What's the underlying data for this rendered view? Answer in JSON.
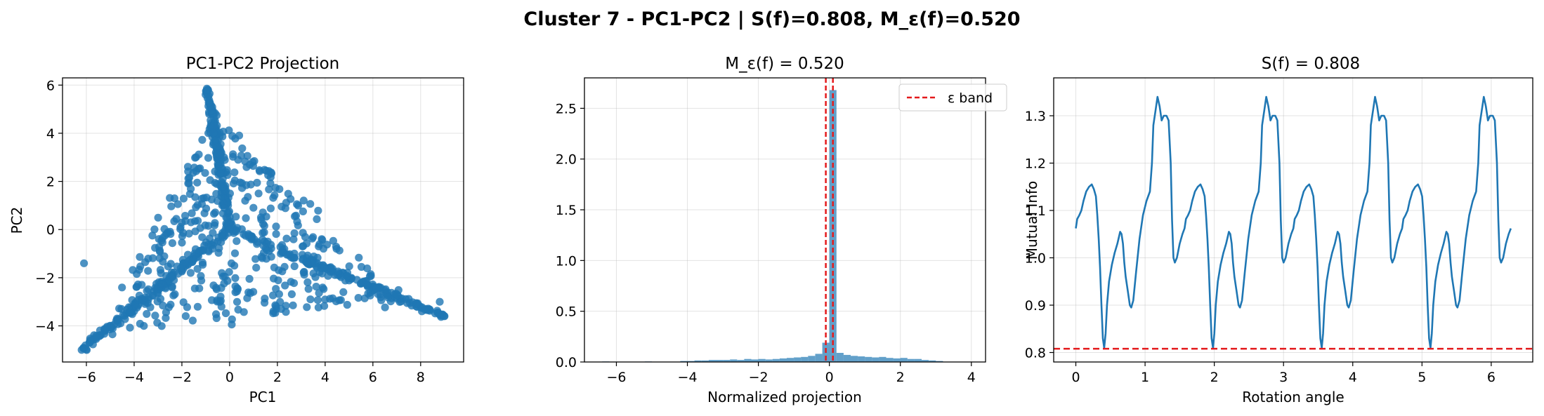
{
  "figure": {
    "title": "Cluster 7 - PC1-PC2 | S(f)=0.808, M_ε(f)=0.520"
  },
  "colors": {
    "series": "#1f77b4",
    "band": "#e41a1c"
  },
  "chart_data": [
    {
      "type": "scatter",
      "title": "PC1-PC2 Projection",
      "xlabel": "PC1",
      "ylabel": "PC2",
      "xlim": [
        -7,
        9.8
      ],
      "ylim": [
        -5.5,
        6.3
      ],
      "xticks": [
        -6,
        -4,
        -2,
        0,
        2,
        4,
        6,
        8
      ],
      "yticks": [
        -4,
        -2,
        0,
        2,
        4,
        6
      ],
      "grid": true,
      "shape": "three-arm star centered near (0, 0) with arms toward (-6.2, -5), (9, -3.6) and (-0.9, 5.8); about 1000 points",
      "extremes": [
        [
          -6.2,
          -5.0
        ],
        [
          9.0,
          -3.6
        ],
        [
          -0.9,
          5.8
        ],
        [
          -6.1,
          -1.4
        ],
        [
          8.8,
          -3.0
        ]
      ]
    },
    {
      "type": "bar",
      "title": "M_ε(f) = 0.520",
      "xlabel": "Normalized projection",
      "ylabel": "",
      "xlim": [
        -6.9,
        4.4
      ],
      "ylim": [
        0,
        2.8
      ],
      "xticks": [
        -6,
        -4,
        -2,
        0,
        2,
        4
      ],
      "yticks": [
        0.0,
        0.5,
        1.0,
        1.5,
        2.0,
        2.5
      ],
      "grid": true,
      "bin_width": 0.2,
      "bins": [
        {
          "x": -6.3,
          "y": 0.005
        },
        {
          "x": -5.1,
          "y": 0.005
        },
        {
          "x": -4.1,
          "y": 0.01
        },
        {
          "x": -3.9,
          "y": 0.01
        },
        {
          "x": -3.7,
          "y": 0.015
        },
        {
          "x": -3.5,
          "y": 0.015
        },
        {
          "x": -3.3,
          "y": 0.02
        },
        {
          "x": -3.1,
          "y": 0.02
        },
        {
          "x": -2.9,
          "y": 0.02
        },
        {
          "x": -2.7,
          "y": 0.025
        },
        {
          "x": -2.5,
          "y": 0.02
        },
        {
          "x": -2.3,
          "y": 0.03
        },
        {
          "x": -2.1,
          "y": 0.025
        },
        {
          "x": -1.9,
          "y": 0.03
        },
        {
          "x": -1.7,
          "y": 0.025
        },
        {
          "x": -1.5,
          "y": 0.03
        },
        {
          "x": -1.3,
          "y": 0.035
        },
        {
          "x": -1.1,
          "y": 0.04
        },
        {
          "x": -0.9,
          "y": 0.045
        },
        {
          "x": -0.7,
          "y": 0.05
        },
        {
          "x": -0.5,
          "y": 0.06
        },
        {
          "x": -0.3,
          "y": 0.08
        },
        {
          "x": -0.1,
          "y": 0.19
        },
        {
          "x": 0.1,
          "y": 2.68
        },
        {
          "x": 0.3,
          "y": 0.09
        },
        {
          "x": 0.5,
          "y": 0.07
        },
        {
          "x": 0.7,
          "y": 0.06
        },
        {
          "x": 0.9,
          "y": 0.055
        },
        {
          "x": 1.1,
          "y": 0.05
        },
        {
          "x": 1.3,
          "y": 0.045
        },
        {
          "x": 1.5,
          "y": 0.05
        },
        {
          "x": 1.7,
          "y": 0.04
        },
        {
          "x": 1.9,
          "y": 0.035
        },
        {
          "x": 2.1,
          "y": 0.04
        },
        {
          "x": 2.3,
          "y": 0.03
        },
        {
          "x": 2.5,
          "y": 0.03
        },
        {
          "x": 2.7,
          "y": 0.02
        },
        {
          "x": 2.9,
          "y": 0.015
        },
        {
          "x": 3.1,
          "y": 0.01
        }
      ],
      "band": [
        -0.1,
        0.1
      ],
      "legend": {
        "label": "ε band",
        "placement": "top-right"
      }
    },
    {
      "type": "line",
      "title": "S(f) = 0.808",
      "xlabel": "Rotation angle",
      "ylabel": "Mutual Info",
      "xlim": [
        -0.32,
        6.6
      ],
      "ylim": [
        0.78,
        1.38
      ],
      "xticks": [
        0,
        1,
        2,
        3,
        4,
        5,
        6
      ],
      "yticks": [
        0.8,
        0.9,
        1.0,
        1.1,
        1.2,
        1.3
      ],
      "grid": true,
      "period": 1.5708,
      "x_range": [
        0,
        6.2832
      ],
      "hline": 0.808,
      "cycle_profile": [
        [
          0.0,
          1.062
        ],
        [
          0.02,
          1.082
        ],
        [
          0.05,
          1.09
        ],
        [
          0.08,
          1.1
        ],
        [
          0.11,
          1.12
        ],
        [
          0.15,
          1.14
        ],
        [
          0.19,
          1.15
        ],
        [
          0.23,
          1.155
        ],
        [
          0.26,
          1.145
        ],
        [
          0.29,
          1.13
        ],
        [
          0.31,
          1.09
        ],
        [
          0.33,
          1.04
        ],
        [
          0.35,
          0.98
        ],
        [
          0.37,
          0.9
        ],
        [
          0.39,
          0.83
        ],
        [
          0.41,
          0.81
        ],
        [
          0.43,
          0.84
        ],
        [
          0.45,
          0.9
        ],
        [
          0.48,
          0.95
        ],
        [
          0.52,
          0.985
        ],
        [
          0.56,
          1.01
        ],
        [
          0.6,
          1.03
        ],
        [
          0.64,
          1.055
        ],
        [
          0.66,
          1.05
        ],
        [
          0.68,
          1.03
        ],
        [
          0.7,
          0.99
        ],
        [
          0.72,
          0.96
        ],
        [
          0.75,
          0.93
        ],
        [
          0.78,
          0.9
        ],
        [
          0.8,
          0.895
        ],
        [
          0.83,
          0.91
        ],
        [
          0.87,
          0.97
        ],
        [
          0.92,
          1.04
        ],
        [
          0.97,
          1.09
        ],
        [
          1.02,
          1.12
        ],
        [
          1.07,
          1.14
        ],
        [
          1.1,
          1.2
        ],
        [
          1.12,
          1.28
        ],
        [
          1.15,
          1.31
        ],
        [
          1.18,
          1.34
        ],
        [
          1.21,
          1.32
        ],
        [
          1.24,
          1.29
        ],
        [
          1.27,
          1.3
        ],
        [
          1.31,
          1.3
        ],
        [
          1.34,
          1.29
        ],
        [
          1.37,
          1.2
        ],
        [
          1.39,
          1.08
        ],
        [
          1.41,
          1.0
        ],
        [
          1.43,
          0.99
        ],
        [
          1.46,
          1.0
        ],
        [
          1.5,
          1.03
        ],
        [
          1.54,
          1.05
        ],
        [
          1.5708,
          1.062
        ]
      ]
    }
  ]
}
